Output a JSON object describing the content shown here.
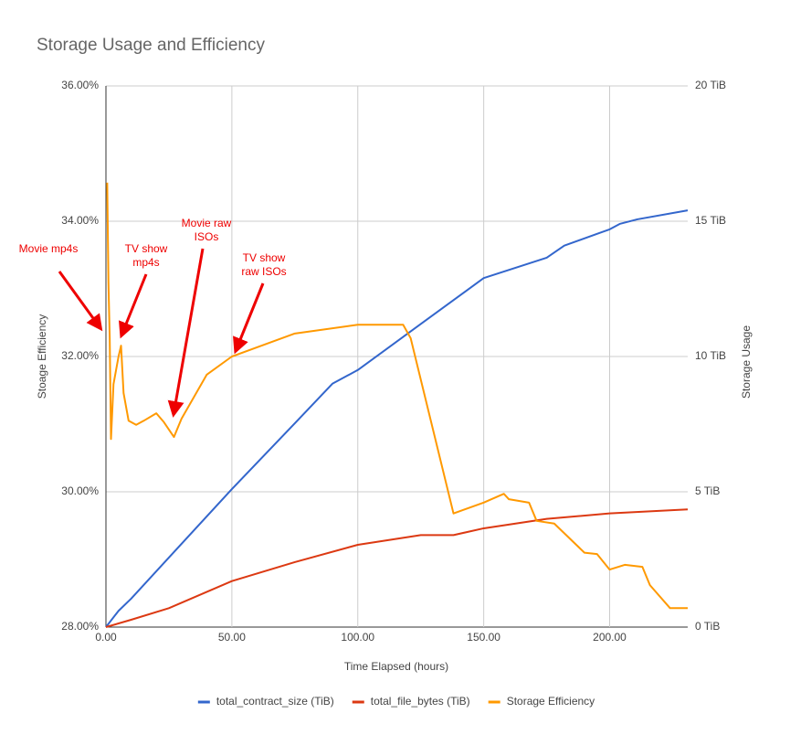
{
  "chart_data": {
    "type": "line",
    "title": "Storage Usage and Efficiency",
    "x_label": "Time Elapsed (hours)",
    "y_label": "Stoage Efficiency",
    "y2_label": "Storage Usage",
    "xlim": [
      0,
      231
    ],
    "xticks": [
      {
        "value": 0,
        "label": "0.00"
      },
      {
        "value": 50,
        "label": "50.00"
      },
      {
        "value": 100,
        "label": "100.00"
      },
      {
        "value": 150,
        "label": "150.00"
      },
      {
        "value": 200,
        "label": "200.00"
      }
    ],
    "ylim": [
      28,
      36
    ],
    "yticks": [
      {
        "value": 28,
        "label": "28.00%"
      },
      {
        "value": 30,
        "label": "30.00%"
      },
      {
        "value": 32,
        "label": "32.00%"
      },
      {
        "value": 34,
        "label": "34.00%"
      },
      {
        "value": 36,
        "label": "36.00%"
      }
    ],
    "y2lim": [
      0,
      20
    ],
    "y2ticks": [
      {
        "value": 0,
        "label": "0 TiB"
      },
      {
        "value": 5,
        "label": "5 TiB"
      },
      {
        "value": 10,
        "label": "10 TiB"
      },
      {
        "value": 15,
        "label": "15 TiB"
      },
      {
        "value": 20,
        "label": "20 TiB"
      }
    ],
    "grid": true,
    "legend": "bottom",
    "series": [
      {
        "name": "total_contract_size (TiB)",
        "color": "#3366cc",
        "axis": "y2",
        "x": [
          0,
          5,
          10,
          25,
          50,
          75,
          90,
          100,
          125,
          150,
          175,
          182,
          200,
          204,
          211,
          231
        ],
        "values": [
          0,
          0.6,
          1.05,
          2.57,
          5.1,
          7.53,
          9.0,
          9.5,
          11.2,
          12.9,
          13.65,
          14.1,
          14.7,
          14.9,
          15.07,
          15.4
        ]
      },
      {
        "name": "total_file_bytes (TiB)",
        "color": "#dc3912",
        "axis": "y2",
        "x": [
          0,
          10,
          25,
          50,
          75,
          100,
          125,
          138,
          150,
          175,
          200,
          231
        ],
        "values": [
          0,
          0.27,
          0.7,
          1.7,
          2.4,
          3.04,
          3.4,
          3.4,
          3.65,
          4.0,
          4.2,
          4.35
        ]
      },
      {
        "name": "Storage Efficiency",
        "color": "#ff9900",
        "axis": "y",
        "x": [
          0.5,
          1,
          1.5,
          2,
          3,
          5,
          6,
          7,
          9,
          12,
          15,
          20,
          23,
          27,
          30,
          40,
          50,
          75,
          100,
          118,
          121,
          125,
          138,
          150,
          158,
          160,
          168,
          171,
          178,
          190,
          195,
          200,
          206,
          213,
          216,
          224,
          231
        ],
        "values": [
          34.57,
          33.08,
          32.27,
          30.78,
          31.59,
          32.0,
          32.16,
          31.46,
          31.05,
          30.99,
          31.05,
          31.16,
          31.03,
          30.81,
          31.08,
          31.73,
          32.0,
          32.34,
          32.47,
          32.47,
          32.27,
          31.66,
          29.68,
          29.84,
          29.97,
          29.89,
          29.84,
          29.57,
          29.53,
          29.1,
          29.08,
          28.85,
          28.92,
          28.89,
          28.62,
          28.28,
          28.28
        ]
      }
    ],
    "annotations": [
      {
        "lines": [
          "Movie mp4s"
        ]
      },
      {
        "lines": [
          "TV show",
          "mp4s"
        ]
      },
      {
        "lines": [
          "Movie raw",
          "ISOs"
        ]
      },
      {
        "lines": [
          "TV show",
          "raw ISOs"
        ]
      }
    ]
  }
}
